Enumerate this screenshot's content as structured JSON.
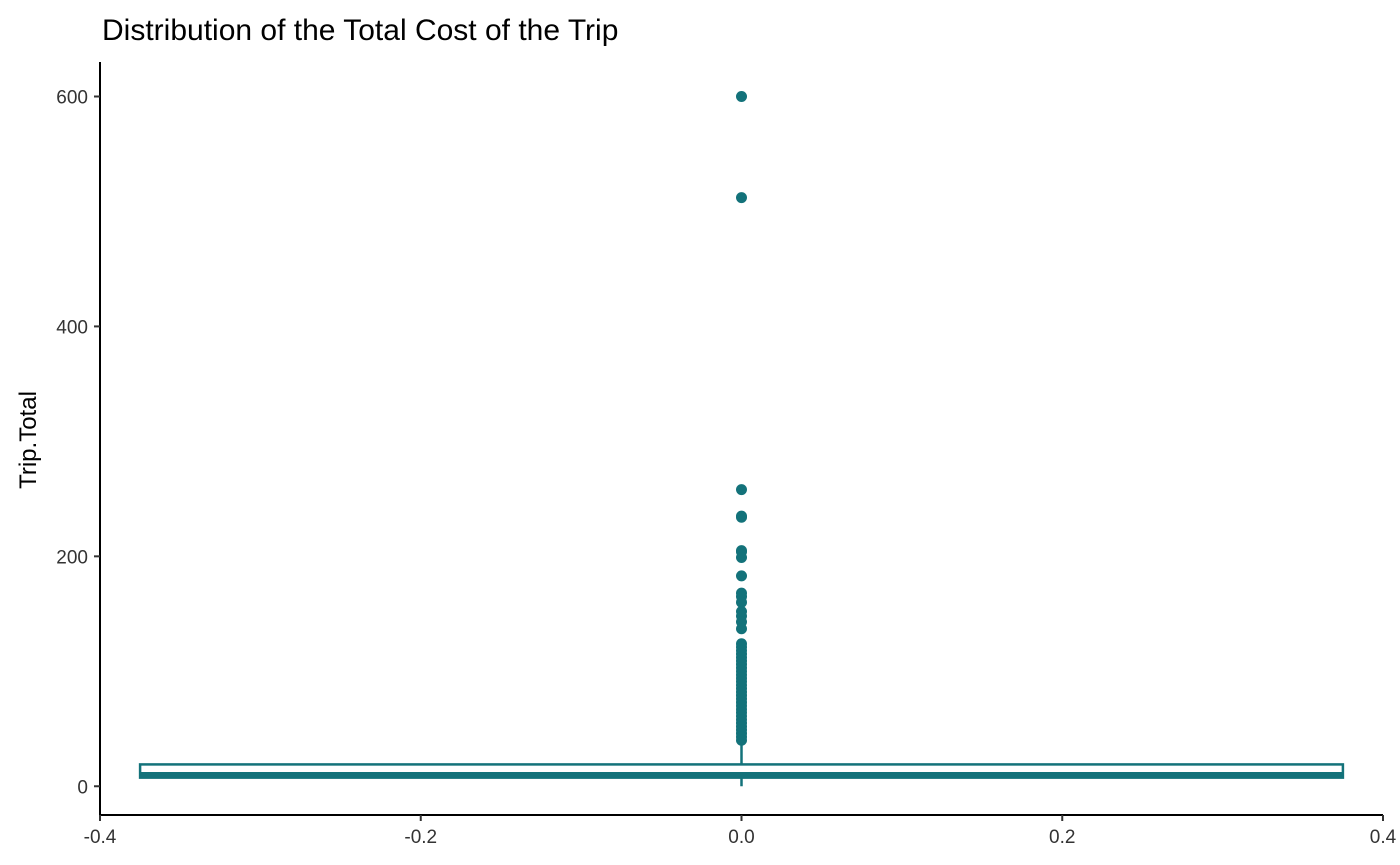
{
  "chart_data": {
    "type": "boxplot",
    "title": "Distribution of the Total Cost of the Trip",
    "xlabel": "",
    "ylabel": "Trip.Total",
    "xlim": [
      -0.4,
      0.4
    ],
    "ylim": [
      -25,
      630
    ],
    "x_ticks": [
      -0.4,
      -0.2,
      0.0,
      0.2,
      0.4
    ],
    "x_tick_labels": [
      "-0.4",
      "-0.2",
      "0.0",
      "0.2",
      "0.4"
    ],
    "y_ticks": [
      0,
      200,
      400,
      600
    ],
    "y_tick_labels": [
      "0",
      "200",
      "400",
      "600"
    ],
    "grid": false,
    "legend": "none",
    "color": "#13727a",
    "box": {
      "x": 0.0,
      "xmin": -0.375,
      "xmax": 0.375,
      "lower_whisker": 0,
      "q1": 7.5,
      "median": 10,
      "q3": 19,
      "upper_whisker": 38
    },
    "outliers": [
      600,
      512,
      258,
      235,
      234,
      205,
      204,
      199,
      183,
      168,
      165,
      160,
      152,
      148,
      143,
      137,
      124,
      121,
      118,
      115,
      112,
      109,
      106,
      103,
      100,
      97,
      94,
      91,
      88,
      85,
      82,
      79,
      76,
      73,
      70,
      67,
      64,
      61,
      58,
      55,
      52,
      49,
      46,
      43,
      40
    ]
  }
}
